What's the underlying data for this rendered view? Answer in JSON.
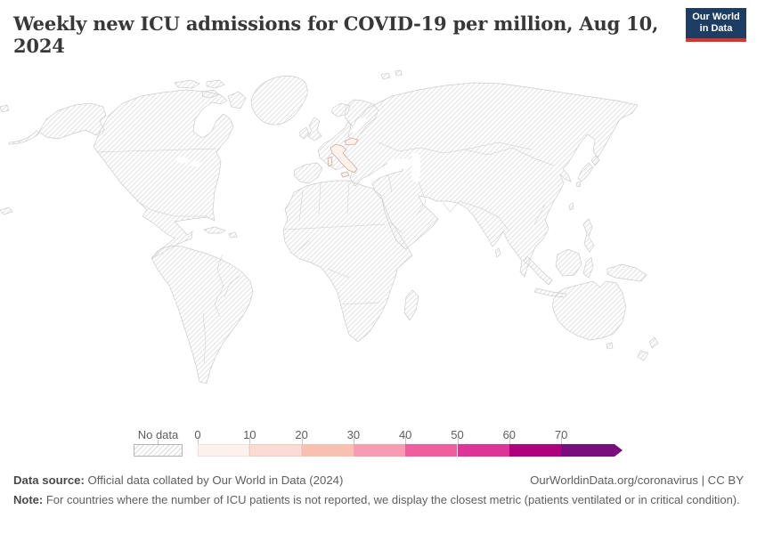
{
  "header": {
    "title": "Weekly new ICU admissions for COVID-19 per million, Aug 10, 2024",
    "logo": {
      "line1": "Our World",
      "line2": "in Data",
      "bg_color": "#1d3d63",
      "accent_color": "#d8352e"
    }
  },
  "chart_data": {
    "type": "choropleth_map",
    "title": "Weekly new ICU admissions for COVID-19 per million",
    "date": "Aug 10, 2024",
    "no_data_label": "No data",
    "legend": {
      "tick_labels": [
        "0",
        "10",
        "20",
        "30",
        "40",
        "50",
        "60",
        "70"
      ],
      "bucket_colors": [
        "#fdf1ec",
        "#fadcd4",
        "#f8c0b1",
        "#f89cb1",
        "#ef5f9e",
        "#dd3497",
        "#ae017e",
        "#7a0d7e"
      ],
      "open_ended_max": true,
      "no_data_pattern": "diagonal-hatch"
    },
    "countries": [
      {
        "name": "Italy",
        "value_bucket": "0-10",
        "bucket_index": 0
      },
      {
        "name": "Slovakia",
        "value_bucket": "0-10",
        "bucket_index": 0
      }
    ],
    "other_countries": "No data"
  },
  "footer": {
    "data_source_label": "Data source:",
    "data_source_text": " Official data collated by Our World in Data (2024)",
    "link_text": "OurWorldinData.org/coronavirus | CC BY",
    "note_label": "Note:",
    "note_text": " For countries where the number of ICU patients is not reported, we display the closest metric (patients ventilated or in critical condition)."
  }
}
